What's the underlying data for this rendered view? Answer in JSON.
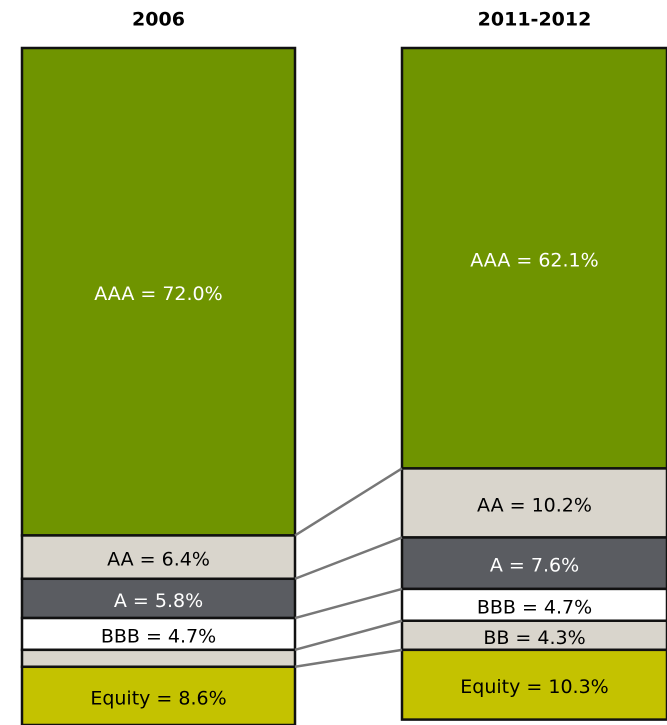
{
  "chart_data": {
    "type": "stacked-bar",
    "categories": [
      "2006",
      "2011-2012"
    ],
    "ylim": [
      0,
      100
    ],
    "series": [
      {
        "name": "AAA",
        "color": "#6f9400",
        "values": [
          72.0,
          62.1
        ],
        "value_labels": [
          "AAA = 72.0%",
          "AAA = 62.1%"
        ]
      },
      {
        "name": "AA",
        "color": "#d9d5cc",
        "values": [
          6.4,
          10.2
        ],
        "value_labels": [
          "AA = 6.4%",
          "AA = 10.2%"
        ]
      },
      {
        "name": "A",
        "color": "#5a5c61",
        "values": [
          5.8,
          7.6
        ],
        "value_labels": [
          "A = 5.8%",
          "A = 7.6%"
        ]
      },
      {
        "name": "BBB",
        "color": "#ffffff",
        "values": [
          4.7,
          4.7
        ],
        "value_labels": [
          "BBB = 4.7%",
          "BBB = 4.7%"
        ]
      },
      {
        "name": "BB",
        "color": "#d9d5cc",
        "values": [
          2.5,
          4.3
        ],
        "value_labels": [
          null,
          "BB = 4.3%"
        ]
      },
      {
        "name": "Equity",
        "color": "#c4c200",
        "values": [
          8.6,
          10.3
        ],
        "value_labels": [
          "Equity = 8.6%",
          "Equity = 10.3%"
        ]
      }
    ]
  }
}
